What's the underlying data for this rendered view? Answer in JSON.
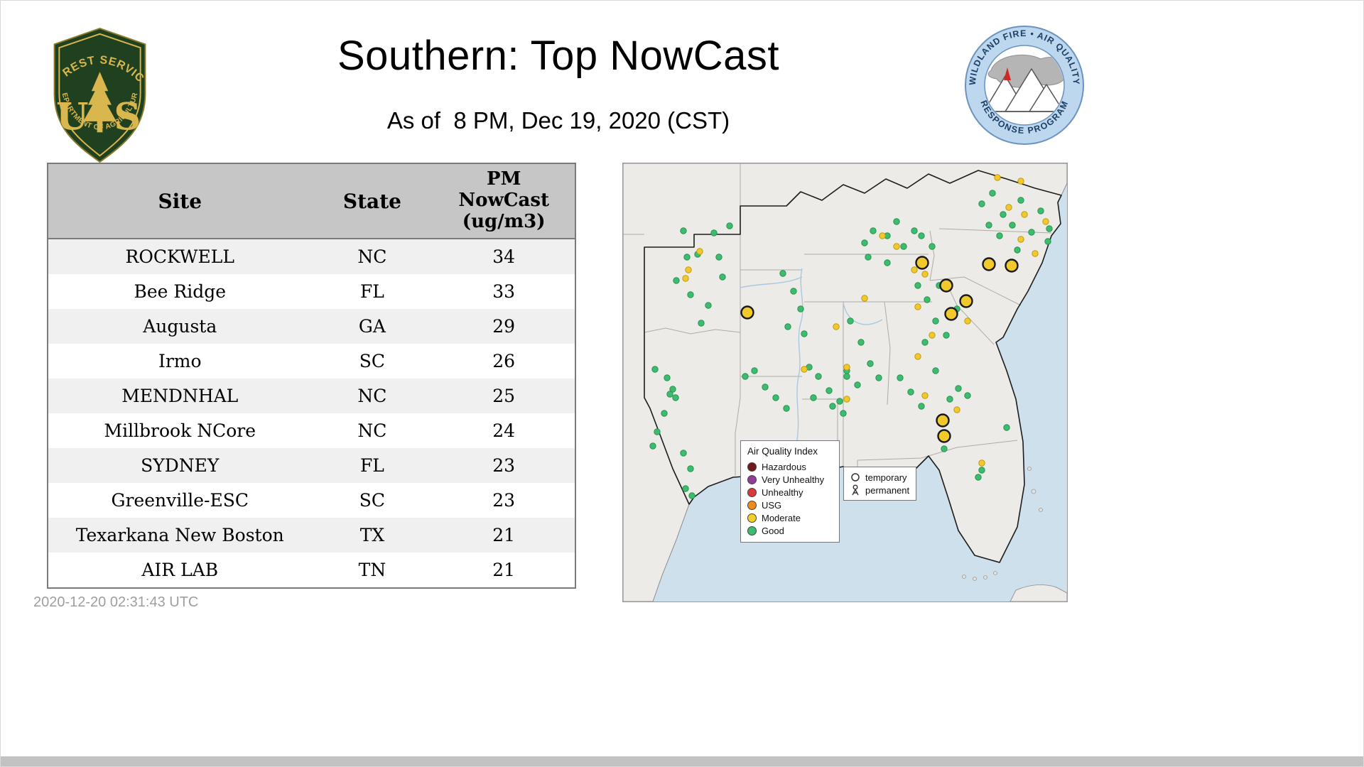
{
  "header": {
    "title": "Southern: Top NowCast",
    "subtitle": "As of  8 PM, Dec 19, 2020 (CST)"
  },
  "footer": {
    "timestamp": "2020-12-20 02:31:43 UTC"
  },
  "logos": {
    "forest_service": {
      "arc_top": "FOREST SERVICE",
      "letter_u": "U",
      "letter_s": "S",
      "arc_bottom": "DEPARTMENT OF AGRICULTURE"
    },
    "response_program": {
      "arc_top": "WILDLAND FIRE • AIR QUALITY",
      "arc_bottom": "RESPONSE PROGRAM"
    }
  },
  "table": {
    "columns": [
      {
        "label": "Site"
      },
      {
        "label": "State"
      },
      {
        "label": "PM\nNowCast\n(ug/m3)"
      }
    ],
    "rows": [
      {
        "site": "ROCKWELL",
        "state": "NC",
        "value": "34"
      },
      {
        "site": "Bee Ridge",
        "state": "FL",
        "value": "33"
      },
      {
        "site": "Augusta",
        "state": "GA",
        "value": "29"
      },
      {
        "site": "Irmo",
        "state": "SC",
        "value": "26"
      },
      {
        "site": "MENDNHAL",
        "state": "NC",
        "value": "25"
      },
      {
        "site": "Millbrook NCore",
        "state": "NC",
        "value": "24"
      },
      {
        "site": "SYDNEY",
        "state": "FL",
        "value": "23"
      },
      {
        "site": "Greenville-ESC",
        "state": "SC",
        "value": "23"
      },
      {
        "site": "Texarkana New Boston",
        "state": "TX",
        "value": "21"
      },
      {
        "site": "AIR LAB",
        "state": "TN",
        "value": "21"
      }
    ]
  },
  "map": {
    "legend": {
      "title": "Air Quality Index",
      "items": [
        {
          "label": "Hazardous",
          "color": "#6d1a1a"
        },
        {
          "label": "Very Unhealthy",
          "color": "#8f3f97"
        },
        {
          "label": "Unhealthy",
          "color": "#d63a3a"
        },
        {
          "label": "USG",
          "color": "#ef8c1e"
        },
        {
          "label": "Moderate",
          "color": "#f2cf2a"
        },
        {
          "label": "Good",
          "color": "#3dbb6e"
        }
      ]
    },
    "symbol_legend": {
      "temporary": "temporary",
      "permanent": "permanent"
    },
    "colors": {
      "good_fill": "#3dbb6e",
      "good_stroke": "#27954f",
      "moderate_fill": "#f2c92a",
      "moderate_stroke": "#bf9a14",
      "large_stroke": "#1a1a1a",
      "water": "#cfe0ed",
      "land": "#edebe7"
    },
    "markers": {
      "good": [
        [
          85,
          95
        ],
        [
          105,
          128
        ],
        [
          128,
          98
        ],
        [
          135,
          132
        ],
        [
          150,
          88
        ],
        [
          90,
          132
        ],
        [
          75,
          165
        ],
        [
          95,
          185
        ],
        [
          120,
          200
        ],
        [
          140,
          160
        ],
        [
          110,
          225
        ],
        [
          45,
          290
        ],
        [
          62,
          302
        ],
        [
          70,
          318
        ],
        [
          66,
          325
        ],
        [
          74,
          330
        ],
        [
          58,
          352
        ],
        [
          48,
          378
        ],
        [
          42,
          398
        ],
        [
          85,
          408
        ],
        [
          95,
          430
        ],
        [
          88,
          458
        ],
        [
          97,
          468
        ],
        [
          185,
          292
        ],
        [
          200,
          315
        ],
        [
          215,
          330
        ],
        [
          230,
          345
        ],
        [
          172,
          300
        ],
        [
          225,
          155
        ],
        [
          240,
          180
        ],
        [
          250,
          205
        ],
        [
          232,
          230
        ],
        [
          255,
          240
        ],
        [
          262,
          287
        ],
        [
          275,
          300
        ],
        [
          290,
          320
        ],
        [
          305,
          335
        ],
        [
          315,
          300
        ],
        [
          268,
          330
        ],
        [
          340,
          112
        ],
        [
          352,
          95
        ],
        [
          372,
          102
        ],
        [
          385,
          82
        ],
        [
          395,
          117
        ],
        [
          410,
          95
        ],
        [
          420,
          102
        ],
        [
          435,
          117
        ],
        [
          372,
          140
        ],
        [
          345,
          132
        ],
        [
          415,
          172
        ],
        [
          428,
          192
        ],
        [
          440,
          222
        ],
        [
          455,
          242
        ],
        [
          470,
          205
        ],
        [
          425,
          252
        ],
        [
          445,
          172
        ],
        [
          505,
          57
        ],
        [
          520,
          42
        ],
        [
          535,
          72
        ],
        [
          548,
          87
        ],
        [
          560,
          52
        ],
        [
          575,
          97
        ],
        [
          588,
          67
        ],
        [
          600,
          92
        ],
        [
          598,
          110
        ],
        [
          530,
          102
        ],
        [
          515,
          87
        ],
        [
          555,
          122
        ],
        [
          320,
          222
        ],
        [
          335,
          252
        ],
        [
          348,
          282
        ],
        [
          360,
          302
        ],
        [
          330,
          312
        ],
        [
          315,
          292
        ],
        [
          390,
          302
        ],
        [
          405,
          322
        ],
        [
          420,
          342
        ],
        [
          440,
          292
        ],
        [
          460,
          332
        ],
        [
          472,
          317
        ],
        [
          485,
          327
        ],
        [
          452,
          402
        ],
        [
          505,
          432
        ],
        [
          500,
          442
        ],
        [
          540,
          372
        ],
        [
          295,
          342
        ],
        [
          310,
          352
        ]
      ],
      "moderate": [
        [
          92,
          150
        ],
        [
          88,
          162
        ],
        [
          108,
          124
        ],
        [
          315,
          287
        ],
        [
          385,
          117
        ],
        [
          410,
          150
        ],
        [
          425,
          156
        ],
        [
          543,
          62
        ],
        [
          565,
          72
        ],
        [
          595,
          82
        ],
        [
          560,
          107
        ],
        [
          580,
          127
        ],
        [
          415,
          202
        ],
        [
          435,
          242
        ],
        [
          415,
          272
        ],
        [
          485,
          222
        ],
        [
          470,
          347
        ],
        [
          505,
          422
        ],
        [
          425,
          327
        ],
        [
          315,
          332
        ],
        [
          365,
          102
        ],
        [
          560,
          25
        ],
        [
          527,
          20
        ],
        [
          255,
          290
        ],
        [
          300,
          230
        ],
        [
          340,
          190
        ]
      ],
      "temporary_large": [
        [
          175,
          210
        ],
        [
          421,
          140
        ],
        [
          455,
          172
        ],
        [
          515,
          142
        ],
        [
          547,
          144
        ],
        [
          483,
          194
        ],
        [
          462,
          212
        ],
        [
          450,
          362
        ],
        [
          452,
          384
        ]
      ]
    }
  }
}
